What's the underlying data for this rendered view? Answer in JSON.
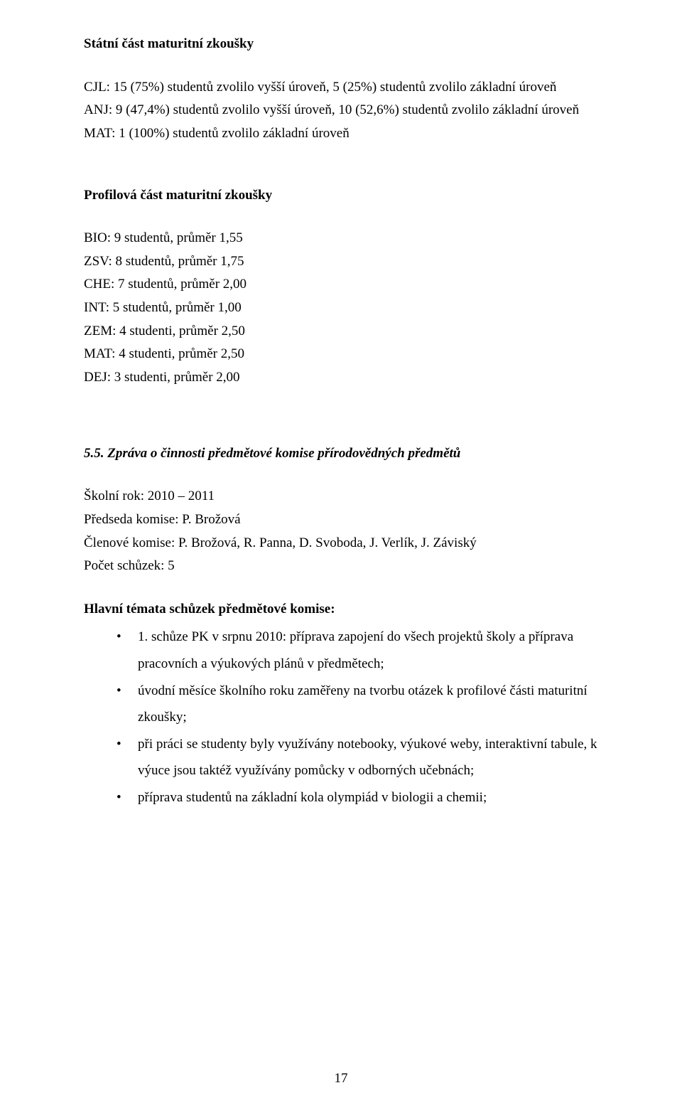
{
  "section1": {
    "heading": "Státní část maturitní zkoušky",
    "lines": [
      "CJL: 15 (75%) studentů zvolilo vyšší úroveň, 5 (25%) studentů zvolilo základní úroveň",
      "ANJ: 9 (47,4%) studentů zvolilo vyšší úroveň, 10 (52,6%) studentů zvolilo základní úroveň",
      "MAT: 1 (100%) studentů zvolilo základní úroveň"
    ]
  },
  "section2": {
    "heading": "Profilová část maturitní zkoušky",
    "lines": [
      "BIO: 9 studentů, průměr 1,55",
      "ZSV: 8 studentů, průměr 1,75",
      "CHE: 7 studentů, průměr 2,00",
      "INT: 5 studentů, průměr 1,00",
      "ZEM: 4 studenti, průměr 2,50",
      "MAT: 4 studenti, průměr 2,50",
      "DEJ: 3 studenti, průměr 2,00"
    ]
  },
  "section3": {
    "heading": "5.5. Zpráva o činnosti předmětové komise přírodovědných předmětů",
    "lines": [
      "Školní rok: 2010 – 2011",
      "Předseda komise: P. Brožová",
      "Členové komise: P. Brožová, R. Panna, D. Svoboda, J. Verlík, J. Záviský",
      "Počet schůzek: 5"
    ]
  },
  "section4": {
    "heading": "Hlavní témata schůzek předmětové komise:",
    "bullets": [
      "1. schůze PK v srpnu 2010: příprava zapojení do všech projektů školy a příprava pracovních a výukových plánů v  předmětech;",
      "úvodní měsíce školního roku zaměřeny na tvorbu otázek k profilové části maturitní zkoušky;",
      "při práci se studenty byly využívány notebooky, výukové weby, interaktivní tabule, k výuce jsou taktéž využívány pomůcky v odborných učebnách;",
      "příprava studentů na základní kola olympiád v biologii a chemii;"
    ]
  },
  "pageNumber": "17"
}
